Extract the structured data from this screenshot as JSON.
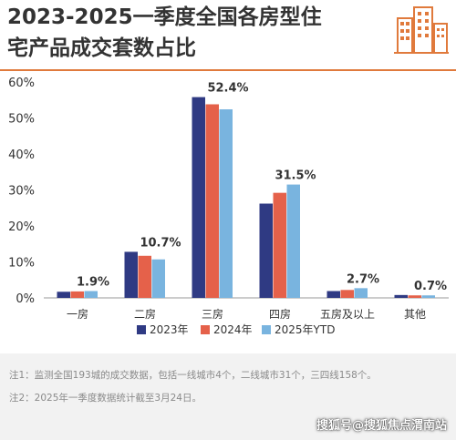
{
  "header": {
    "title_line1": "2023-2025一季度全国各房型住",
    "title_line2": "宅产品成交套数占比"
  },
  "colors": {
    "series_2023": "#2f3a83",
    "series_2024": "#e5614a",
    "series_2025": "#79b4df",
    "accent": "#e07a3c"
  },
  "logo_icon": "building-icon",
  "chart_data": {
    "type": "bar",
    "categories": [
      "一房",
      "二房",
      "三房",
      "四房",
      "五房及以上",
      "其他"
    ],
    "series": [
      {
        "name": "2023年",
        "values": [
          1.7,
          12.8,
          55.8,
          26.2,
          1.9,
          0.8
        ]
      },
      {
        "name": "2024年",
        "values": [
          1.8,
          11.7,
          53.8,
          29.2,
          2.2,
          0.7
        ]
      },
      {
        "name": "2025年YTD",
        "values": [
          1.9,
          10.7,
          52.4,
          31.5,
          2.7,
          0.7
        ]
      }
    ],
    "data_labels": [
      "1.9%",
      "10.7%",
      "52.4%",
      "31.5%",
      "2.7%",
      "0.7%"
    ],
    "y_ticks": [
      "0%",
      "10%",
      "20%",
      "30%",
      "40%",
      "50%",
      "60%"
    ],
    "ylim": [
      0,
      60
    ],
    "grid": false,
    "legend_position": "bottom"
  },
  "notes": {
    "note1": "注1：监测全国193城的成交数据，包括一线城市4个，二线城市31个，三四线158个。",
    "note2": "注2：2025年一季度数据统计截至3月24日。"
  },
  "source": "搜狐号@搜狐焦点渭南站"
}
